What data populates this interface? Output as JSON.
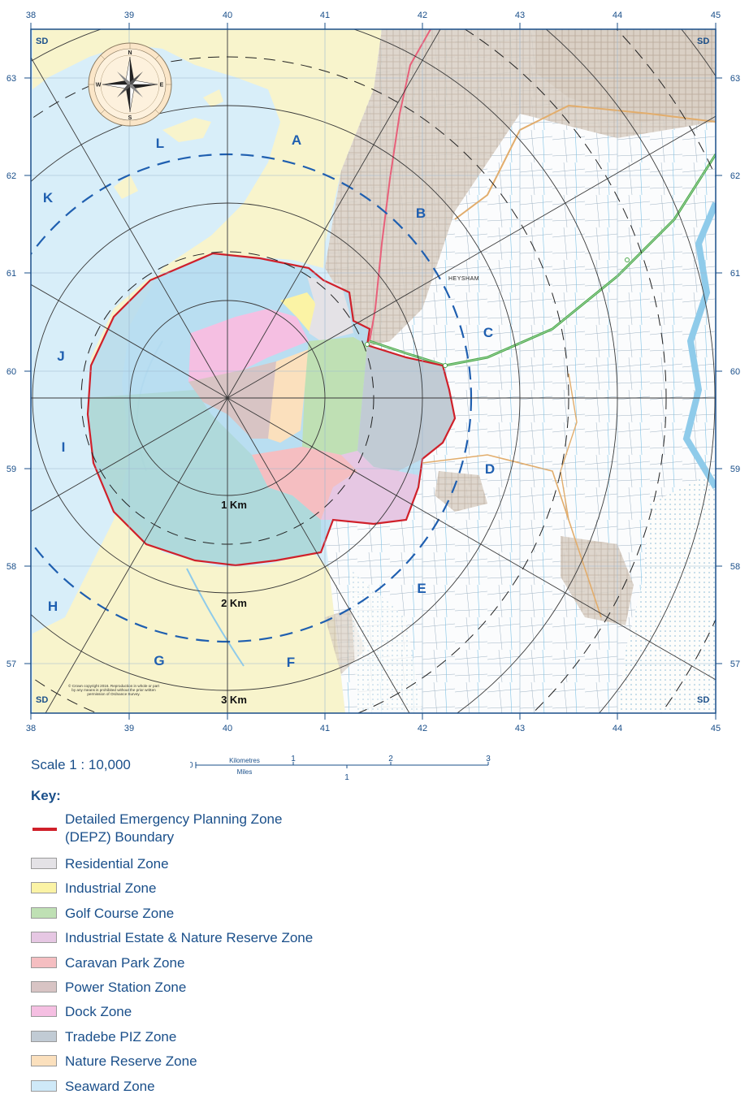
{
  "map": {
    "grid_x_labels": [
      "38",
      "39",
      "40",
      "41",
      "42",
      "43",
      "44",
      "45"
    ],
    "grid_y_labels": [
      "63",
      "62",
      "61",
      "60",
      "59",
      "58",
      "57"
    ],
    "grid_ref_label": "SD",
    "sectors": [
      "A",
      "B",
      "C",
      "D",
      "E",
      "F",
      "G",
      "H",
      "I",
      "J",
      "K",
      "L"
    ],
    "ring_labels": [
      "1 Km",
      "2 Km",
      "3 Km"
    ],
    "place_label": "HEYSHAM",
    "compass": {
      "n": "N",
      "e": "E",
      "s": "S",
      "w": "W"
    },
    "copyright": "© Crown copyright 2016. Reproduction in whole or part by any means is prohibited without the prior written permission of Ordnance Survey."
  },
  "scale": {
    "label": "Scale 1 : 10,000",
    "zero": "0",
    "km_label": "Kilometres",
    "km_ticks": [
      "1",
      "2",
      "3"
    ],
    "miles_label": "Miles",
    "miles_ticks": [
      "1"
    ]
  },
  "key": {
    "title": "Key:",
    "boundary": {
      "label_line1": "Detailed Emergency Planning Zone",
      "label_line2": "(DEPZ) Boundary",
      "color": "#d0202a"
    },
    "zones": [
      {
        "label": "Residential Zone",
        "color": "#e4e2e6"
      },
      {
        "label": "Industrial Zone",
        "color": "#fbf3a5"
      },
      {
        "label": "Golf Course Zone",
        "color": "#bfe0b4"
      },
      {
        "label": "Industrial Estate & Nature Reserve Zone",
        "color": "#e6c7e3"
      },
      {
        "label": "Caravan Park Zone",
        "color": "#f5bec1"
      },
      {
        "label": "Power Station Zone",
        "color": "#d8c4c4"
      },
      {
        "label": "Dock Zone",
        "color": "#f5bfe2"
      },
      {
        "label": "Tradebe PIZ Zone",
        "color": "#c1cbd4"
      },
      {
        "label": "Nature Reserve Zone",
        "color": "#fbe0bd"
      },
      {
        "label": "Seaward Zone",
        "color": "#cfe9f8"
      }
    ]
  }
}
